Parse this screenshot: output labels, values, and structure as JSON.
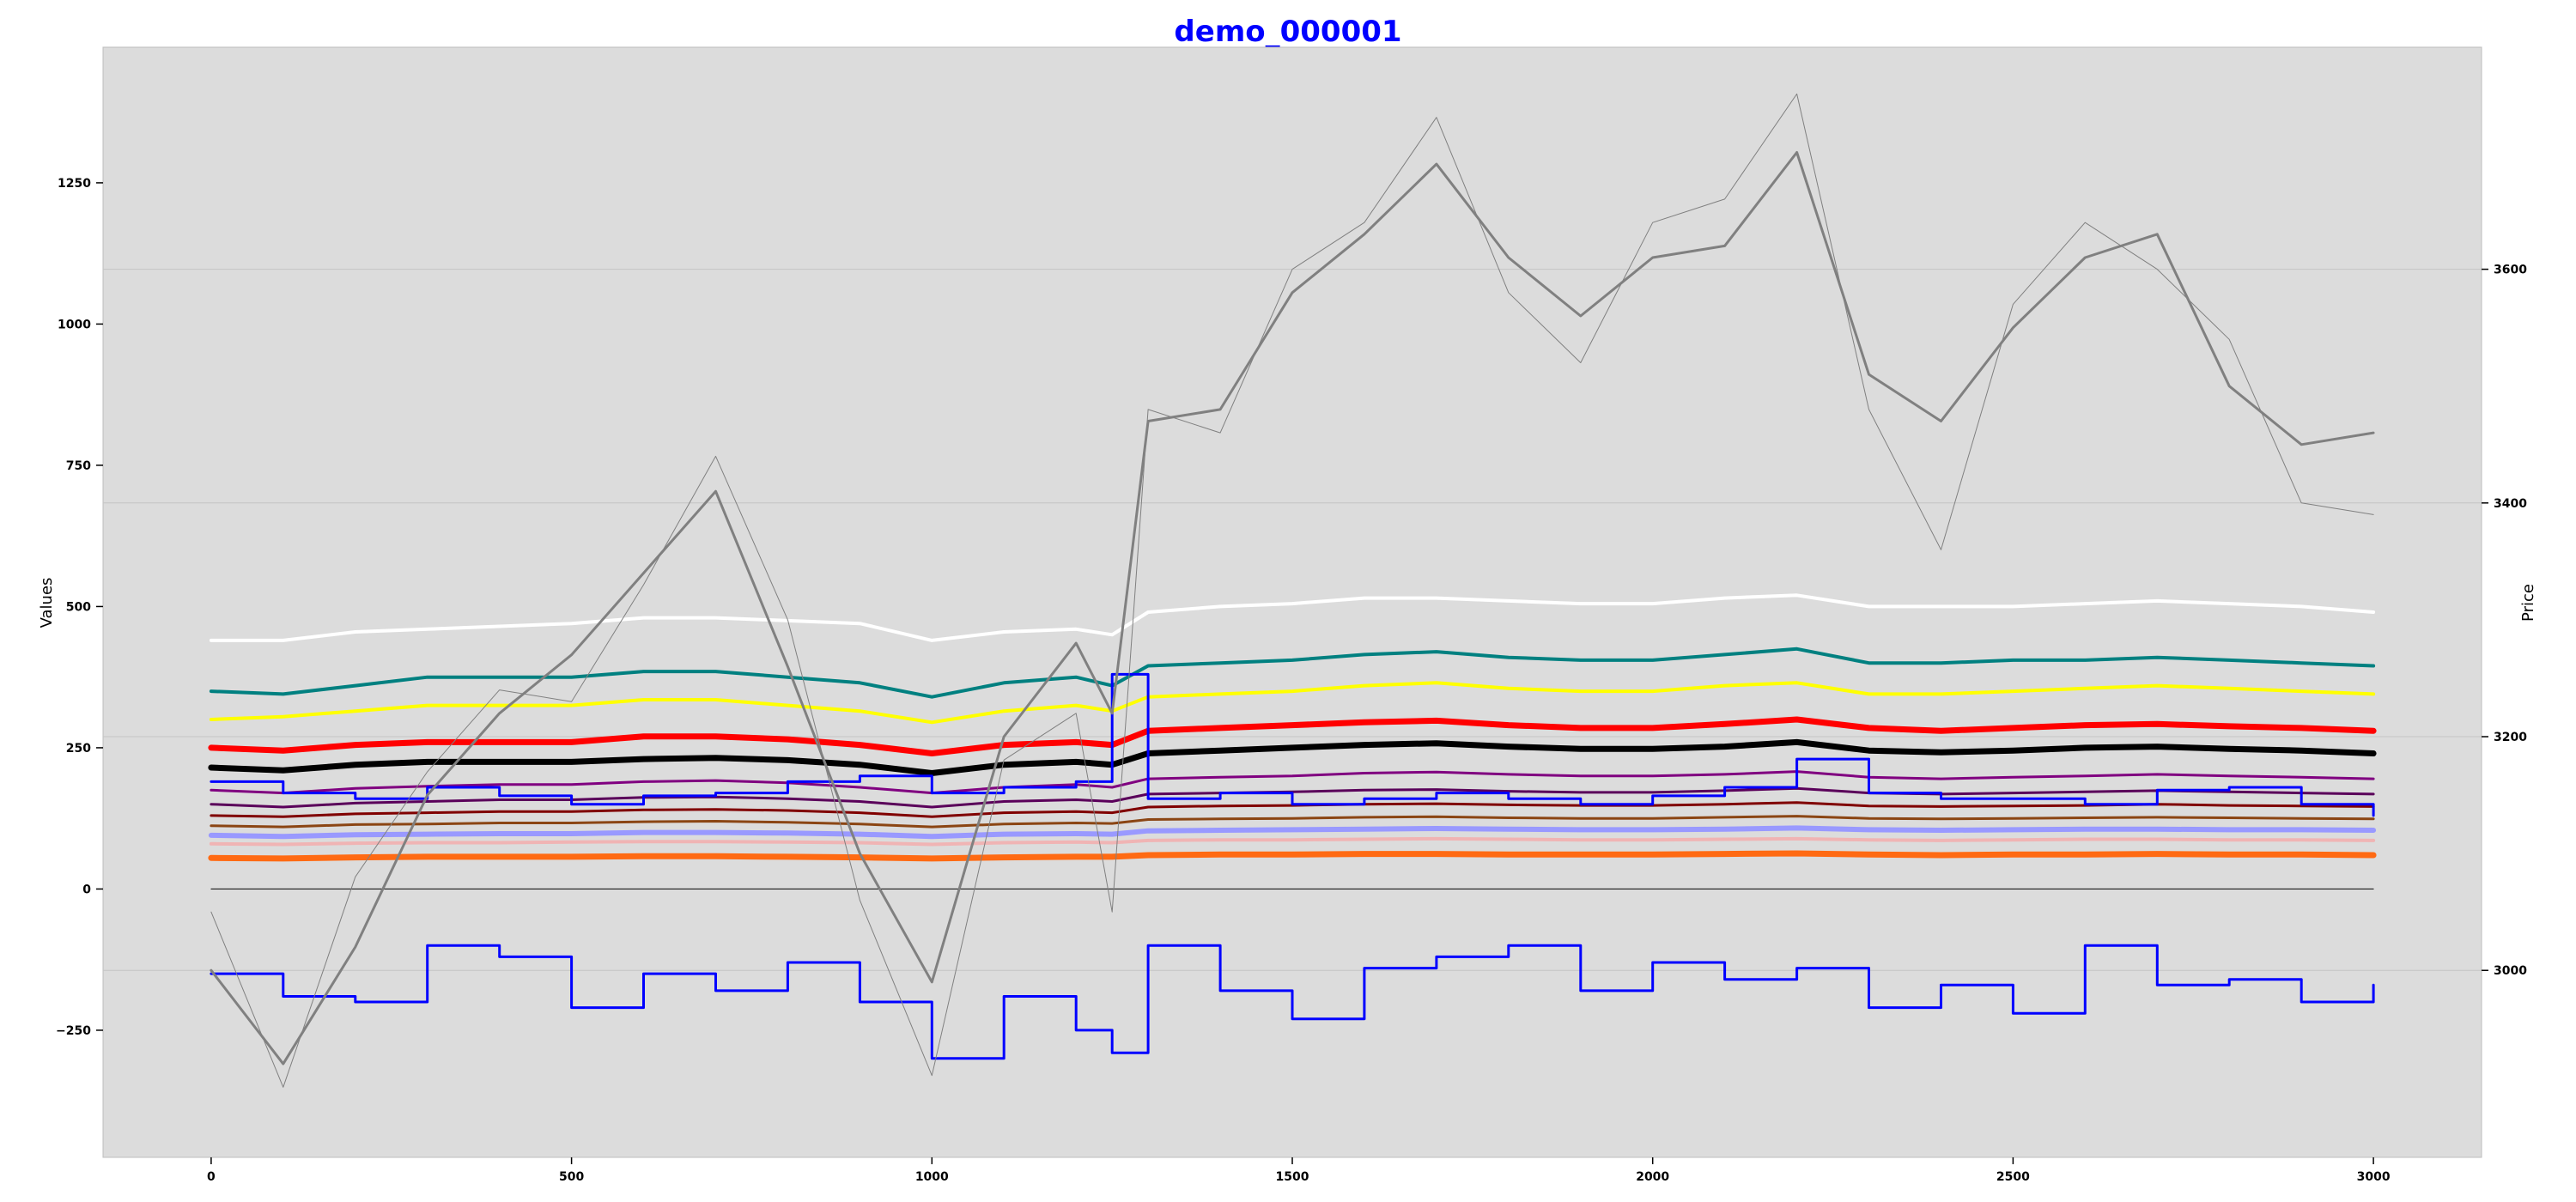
{
  "chart_data": {
    "type": "line",
    "title": "demo_000001",
    "title_color": "#0000ff",
    "ylabel": "Values",
    "ylabel_right": "Price",
    "plot_background": "#dcdcdc",
    "grid": "right-axis horizontal gridlines",
    "xlim": [
      -150,
      3150
    ],
    "ylim": [
      -475,
      1490
    ],
    "ylim_right": [
      2840,
      3790
    ],
    "xticks": [
      0,
      500,
      1000,
      1500,
      2000,
      2500,
      3000
    ],
    "yticks": [
      -250,
      0,
      250,
      500,
      750,
      1000,
      1250
    ],
    "yticks_right": [
      3000,
      3200,
      3400,
      3600
    ],
    "tick_labels": {
      "x": [
        "0",
        "500",
        "1000",
        "1500",
        "2000",
        "2500",
        "3000"
      ],
      "y": [
        "−250",
        "0",
        "250",
        "500",
        "750",
        "1000",
        "1250"
      ],
      "y_right": [
        "3000",
        "3200",
        "3400",
        "3600"
      ]
    },
    "x": [
      0,
      100,
      200,
      300,
      400,
      500,
      600,
      700,
      800,
      900,
      1000,
      1100,
      1200,
      1250,
      1300,
      1400,
      1500,
      1600,
      1700,
      1800,
      1900,
      2000,
      2100,
      2200,
      2300,
      2400,
      2500,
      2600,
      2700,
      2800,
      2900,
      3000
    ],
    "series": [
      {
        "color": "#ffffff",
        "width": 4,
        "axis": "left",
        "values": [
          440,
          440,
          455,
          460,
          465,
          470,
          480,
          480,
          475,
          470,
          440,
          455,
          460,
          450,
          490,
          500,
          505,
          515,
          515,
          510,
          505,
          505,
          515,
          520,
          500,
          500,
          500,
          505,
          510,
          505,
          500,
          490
        ]
      },
      {
        "color": "#008080",
        "width": 4,
        "axis": "left",
        "values": [
          350,
          345,
          360,
          375,
          375,
          375,
          385,
          385,
          375,
          365,
          340,
          365,
          375,
          360,
          395,
          400,
          405,
          415,
          420,
          410,
          405,
          405,
          415,
          425,
          400,
          400,
          405,
          405,
          410,
          405,
          400,
          395
        ]
      },
      {
        "color": "#ffff00",
        "width": 4,
        "axis": "left",
        "values": [
          300,
          305,
          315,
          325,
          325,
          325,
          335,
          335,
          325,
          315,
          295,
          315,
          325,
          315,
          340,
          345,
          350,
          360,
          365,
          355,
          350,
          350,
          360,
          365,
          345,
          345,
          350,
          355,
          360,
          355,
          350,
          345
        ]
      },
      {
        "color": "#ff0000",
        "width": 7,
        "axis": "left",
        "values": [
          250,
          245,
          255,
          260,
          260,
          260,
          270,
          270,
          265,
          255,
          240,
          255,
          260,
          255,
          280,
          285,
          290,
          295,
          298,
          290,
          285,
          285,
          292,
          300,
          285,
          280,
          285,
          290,
          292,
          288,
          285,
          280
        ]
      },
      {
        "color": "#000000",
        "width": 7,
        "axis": "left",
        "values": [
          215,
          210,
          220,
          225,
          225,
          225,
          230,
          232,
          228,
          220,
          205,
          220,
          225,
          220,
          240,
          245,
          250,
          255,
          258,
          252,
          248,
          248,
          252,
          260,
          245,
          242,
          245,
          250,
          252,
          248,
          245,
          240
        ]
      },
      {
        "color": "#800080",
        "width": 3,
        "axis": "left",
        "values": [
          175,
          170,
          178,
          182,
          185,
          185,
          190,
          192,
          188,
          180,
          170,
          180,
          185,
          180,
          195,
          198,
          200,
          205,
          207,
          203,
          200,
          200,
          203,
          208,
          198,
          195,
          198,
          200,
          203,
          200,
          198,
          195
        ]
      },
      {
        "color": "#5a005a",
        "width": 3,
        "axis": "left",
        "values": [
          150,
          145,
          152,
          155,
          158,
          158,
          162,
          163,
          160,
          155,
          145,
          155,
          158,
          155,
          168,
          170,
          172,
          175,
          176,
          173,
          171,
          171,
          174,
          178,
          170,
          168,
          170,
          172,
          174,
          172,
          170,
          168
        ]
      },
      {
        "color": "#800000",
        "width": 3,
        "axis": "left",
        "values": [
          130,
          128,
          133,
          135,
          137,
          137,
          140,
          141,
          139,
          135,
          128,
          135,
          137,
          135,
          145,
          147,
          148,
          150,
          151,
          149,
          148,
          148,
          150,
          153,
          147,
          146,
          147,
          148,
          150,
          148,
          147,
          146
        ]
      },
      {
        "color": "#8b4513",
        "width": 3,
        "axis": "left",
        "values": [
          112,
          110,
          114,
          115,
          117,
          117,
          119,
          120,
          118,
          115,
          110,
          115,
          117,
          116,
          123,
          124,
          125,
          127,
          128,
          126,
          125,
          125,
          127,
          129,
          125,
          124,
          125,
          126,
          127,
          126,
          125,
          124
        ]
      },
      {
        "color": "#9999ff",
        "width": 6,
        "axis": "left",
        "values": [
          95,
          93,
          96,
          97,
          98,
          98,
          100,
          100,
          99,
          97,
          93,
          97,
          98,
          97,
          103,
          104,
          105,
          106,
          107,
          106,
          105,
          105,
          106,
          108,
          105,
          104,
          105,
          106,
          106,
          105,
          105,
          104
        ]
      },
      {
        "color": "#f0b4b4",
        "width": 4,
        "axis": "left",
        "values": [
          80,
          79,
          81,
          82,
          82,
          83,
          84,
          84,
          83,
          82,
          79,
          82,
          83,
          82,
          86,
          87,
          87,
          88,
          89,
          88,
          87,
          87,
          88,
          89,
          87,
          86,
          87,
          88,
          88,
          87,
          87,
          86
        ]
      },
      {
        "color": "#ff6a13",
        "width": 7,
        "axis": "left",
        "values": [
          55,
          54,
          56,
          57,
          57,
          57,
          58,
          58,
          57,
          56,
          54,
          56,
          57,
          57,
          60,
          61,
          61,
          62,
          62,
          61,
          61,
          61,
          62,
          63,
          61,
          60,
          61,
          61,
          62,
          61,
          61,
          60
        ]
      },
      {
        "color": "#000000",
        "width": 1,
        "axis": "left",
        "values": [
          0,
          0,
          0,
          0,
          0,
          0,
          0,
          0,
          0,
          0,
          0,
          0,
          0,
          0,
          0,
          0,
          0,
          0,
          0,
          0,
          0,
          0,
          0,
          0,
          0,
          0,
          0,
          0,
          0,
          0,
          0,
          0
        ]
      },
      {
        "color": "#0000ff",
        "width": 3,
        "axis": "left",
        "step": true,
        "values": [
          190,
          170,
          160,
          180,
          165,
          150,
          165,
          170,
          190,
          200,
          170,
          180,
          190,
          380,
          160,
          170,
          150,
          160,
          170,
          160,
          150,
          165,
          180,
          230,
          170,
          160,
          160,
          150,
          175,
          180,
          150,
          130
        ]
      },
      {
        "color": "#0000ff",
        "width": 3,
        "axis": "left",
        "step": true,
        "values": [
          -150,
          -190,
          -200,
          -100,
          -120,
          -210,
          -150,
          -180,
          -130,
          -200,
          -300,
          -190,
          -250,
          -290,
          -100,
          -180,
          -230,
          -140,
          -120,
          -100,
          -180,
          -130,
          -160,
          -140,
          -210,
          -170,
          -220,
          -100,
          -170,
          -160,
          -200,
          -170
        ]
      },
      {
        "color": "#808080",
        "width": 3,
        "axis": "right",
        "values": [
          3000,
          2920,
          3020,
          3150,
          3220,
          3270,
          3340,
          3410,
          3260,
          3100,
          2990,
          3200,
          3280,
          3220,
          3470,
          3480,
          3580,
          3630,
          3690,
          3610,
          3560,
          3610,
          3620,
          3700,
          3510,
          3470,
          3550,
          3610,
          3630,
          3500,
          3450,
          3460
        ]
      },
      {
        "color": "#808080",
        "width": 1,
        "axis": "right",
        "values": [
          3050,
          2900,
          3080,
          3170,
          3240,
          3230,
          3330,
          3440,
          3300,
          3060,
          2910,
          3180,
          3220,
          3050,
          3480,
          3460,
          3600,
          3640,
          3730,
          3580,
          3520,
          3640,
          3660,
          3750,
          3480,
          3360,
          3570,
          3640,
          3600,
          3540,
          3400,
          3390
        ]
      }
    ]
  }
}
